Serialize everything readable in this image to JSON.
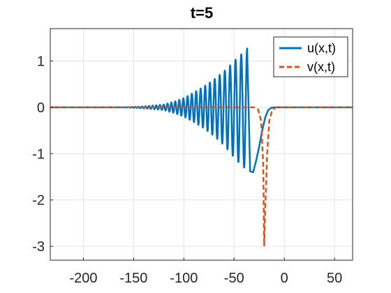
{
  "chart_data": {
    "type": "line",
    "title": "t=5",
    "xlabel": "",
    "ylabel": "",
    "xlim": [
      -233,
      68
    ],
    "ylim": [
      -3.3,
      1.7
    ],
    "x_ticks": [
      -200,
      -150,
      -100,
      -50,
      0,
      50
    ],
    "y_ticks": [
      1,
      0,
      -1,
      -2,
      -3
    ],
    "x_tick_labels": [
      "-200",
      "-150",
      "-100",
      "-50",
      "0",
      "50"
    ],
    "y_tick_labels": [
      "1",
      "0",
      "-1",
      "-2",
      "-3"
    ],
    "grid": true,
    "legend_position": "top-right",
    "series": [
      {
        "name": "u(x,t)",
        "color": "#0072BD",
        "style": "solid",
        "description_points": {
          "x": [
            -233,
            -160,
            -140,
            -120,
            -110,
            -100,
            -90,
            -80,
            -70,
            -60,
            -55,
            -50,
            -45,
            -40,
            -37,
            -34,
            -31,
            -28,
            -25,
            -22,
            -20,
            -17,
            -14,
            -10,
            0,
            68
          ],
          "y": [
            0,
            0,
            0.02,
            0.06,
            0.12,
            0.2,
            0.32,
            0.45,
            0.6,
            0.78,
            0.88,
            1.0,
            1.1,
            1.27,
            -1.38,
            -1.4,
            -1.2,
            -0.9,
            -0.55,
            -0.25,
            -0.1,
            -0.03,
            0,
            0,
            0,
            0
          ]
        },
        "envelope": {
          "x": [
            -160,
            -140,
            -120,
            -110,
            -100,
            -90,
            -80,
            -70,
            -60,
            -55,
            -50,
            -45,
            -40,
            -37
          ],
          "upper": [
            0,
            0.02,
            0.06,
            0.12,
            0.2,
            0.32,
            0.45,
            0.6,
            0.78,
            0.88,
            1.0,
            1.1,
            1.2,
            1.27
          ],
          "lower": [
            0,
            -0.02,
            -0.06,
            -0.12,
            -0.2,
            -0.32,
            -0.45,
            -0.62,
            -0.82,
            -0.95,
            -1.08,
            -1.2,
            -1.3,
            -1.38
          ]
        }
      },
      {
        "name": "v(x,t)",
        "color": "#D95319",
        "style": "dashed",
        "x": [
          -233,
          -30,
          -26,
          -23,
          -21,
          -20,
          -19,
          -17,
          -15,
          -12,
          -8,
          0,
          68
        ],
        "y": [
          0,
          0,
          -0.05,
          -0.3,
          -1.2,
          -3.0,
          -2.2,
          -1.0,
          -0.3,
          -0.05,
          0,
          0,
          0
        ]
      }
    ]
  }
}
